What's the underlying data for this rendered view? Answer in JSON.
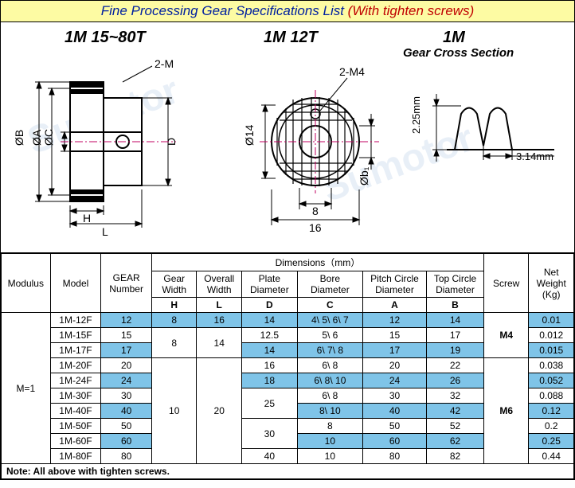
{
  "title": {
    "main": "Fine Processing Gear Specifications List ",
    "red": "(With tighten screws)"
  },
  "diagrams": {
    "left_label": "1M 15~80T",
    "mid_label": "1M 12T",
    "right_label": "1M",
    "right_sub": "Gear Cross Section",
    "left": {
      "ob": "ØB",
      "oa": "ØA",
      "oc": "ØC",
      "d": "D",
      "h": "H",
      "l": "L",
      "m": "2-M"
    },
    "mid": {
      "m4": "2-M4",
      "d14": "Ø14",
      "ob1": "Øb₁",
      "w8": "8",
      "w16": "16"
    },
    "right": {
      "h": "2.25mm",
      "w": "3.14mm"
    }
  },
  "table": {
    "dimensions_header": "Dimensions（mm）",
    "headers": {
      "modulus": "Modulus",
      "model": "Model",
      "gear_number": "GEAR\nNumber",
      "gear_width": "Gear\nWidth",
      "gear_width_sym": "H",
      "overall_width": "Overall\nWidth",
      "overall_width_sym": "L",
      "plate_diameter": "Plate\nDiameter",
      "plate_diameter_sym": "D",
      "bore_diameter": "Bore\nDiameter",
      "bore_diameter_sym": "C",
      "pitch_circle": "Pitch Circle\nDiameter",
      "pitch_circle_sym": "A",
      "top_circle": "Top Circle\nDiameter",
      "top_circle_sym": "B",
      "screw": "Screw",
      "net_weight": "Net\nWeight\n(Kg)"
    },
    "modulus": "M=1",
    "screw_m4": "M4",
    "screw_m6": "M6",
    "rows": [
      {
        "model": "1M-12F",
        "gn": "12",
        "gw": "8",
        "ow": "16",
        "pd": "14",
        "bd": "4\\ 5\\ 6\\ 7",
        "pc": "12",
        "tc": "14",
        "wt": "0.01",
        "hl": true
      },
      {
        "model": "1M-15F",
        "gn": "15",
        "gw": "8",
        "ow": "14",
        "pd": "12.5",
        "bd": "5\\ 6",
        "pc": "15",
        "tc": "17",
        "wt": "0.012",
        "hl": false
      },
      {
        "model": "1M-17F",
        "gn": "17",
        "gw": "8",
        "ow": "14",
        "pd": "14",
        "bd": "6\\ 7\\ 8",
        "pc": "17",
        "tc": "19",
        "wt": "0.015",
        "hl": true
      },
      {
        "model": "1M-20F",
        "gn": "20",
        "gw": "10",
        "ow": "20",
        "pd": "16",
        "bd": "6\\ 8",
        "pc": "20",
        "tc": "22",
        "wt": "0.038",
        "hl": false
      },
      {
        "model": "1M-24F",
        "gn": "24",
        "gw": "10",
        "ow": "20",
        "pd": "18",
        "bd": "6\\ 8\\ 10",
        "pc": "24",
        "tc": "26",
        "wt": "0.052",
        "hl": true
      },
      {
        "model": "1M-30F",
        "gn": "30",
        "gw": "10",
        "ow": "20",
        "pd": "25",
        "bd": "6\\ 8",
        "pc": "30",
        "tc": "32",
        "wt": "0.088",
        "hl": false
      },
      {
        "model": "1M-40F",
        "gn": "40",
        "gw": "10",
        "ow": "20",
        "pd": "25",
        "bd": "8\\ 10",
        "pc": "40",
        "tc": "42",
        "wt": "0.12",
        "hl": true
      },
      {
        "model": "1M-50F",
        "gn": "50",
        "gw": "10",
        "ow": "20",
        "pd": "30",
        "bd": "8",
        "pc": "50",
        "tc": "52",
        "wt": "0.2",
        "hl": false
      },
      {
        "model": "1M-60F",
        "gn": "60",
        "gw": "10",
        "ow": "20",
        "pd": "30",
        "bd": "10",
        "pc": "60",
        "tc": "62",
        "wt": "0.25",
        "hl": true
      },
      {
        "model": "1M-80F",
        "gn": "80",
        "gw": "10",
        "ow": "20",
        "pd": "40",
        "bd": "10",
        "pc": "80",
        "tc": "82",
        "wt": "0.44",
        "hl": false
      }
    ],
    "note": "Note: All above with tighten screws."
  },
  "colors": {
    "highlight": "#7fc4e8",
    "title_bg": "#fdfba3",
    "title_blue": "#0020a0",
    "title_red": "#c00000"
  }
}
